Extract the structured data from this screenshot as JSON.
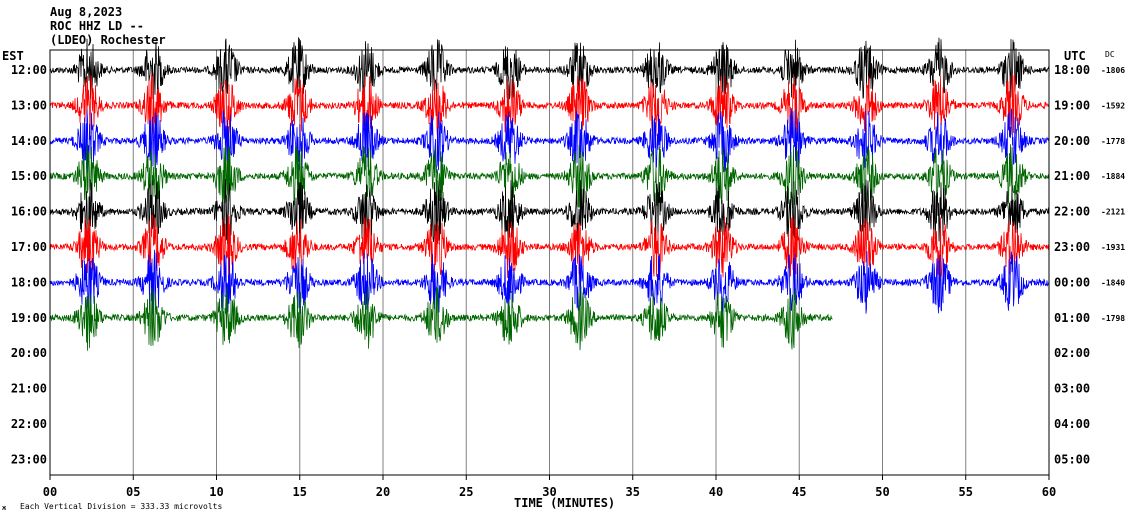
{
  "header": {
    "date": "Aug 8,2023",
    "station": "ROC HHZ LD --",
    "network": "(LDEO) Rochester",
    "left_tz": "EST",
    "right_tz": "UTC",
    "dc_label": "DC"
  },
  "footer": {
    "x_axis_title": "TIME (MINUTES)",
    "scale_note": "Each Vertical Division =  333.33 microvolts"
  },
  "chart_data": {
    "type": "line",
    "title": "",
    "xlabel": "TIME (MINUTES)",
    "ylabel": "",
    "xlim": [
      0,
      60
    ],
    "x_ticks": [
      "00",
      "05",
      "10",
      "15",
      "20",
      "25",
      "30",
      "35",
      "40",
      "45",
      "50",
      "55",
      "60"
    ],
    "grid": "vertical lines every 5 minutes",
    "rows_est": [
      "12:00",
      "13:00",
      "14:00",
      "15:00",
      "16:00",
      "17:00",
      "18:00",
      "19:00",
      "20:00",
      "21:00",
      "22:00",
      "23:00"
    ],
    "rows_utc": [
      "18:00",
      "19:00",
      "20:00",
      "21:00",
      "22:00",
      "23:00",
      "00:00",
      "01:00",
      "02:00",
      "03:00",
      "04:00",
      "05:00"
    ],
    "dc_offsets": [
      "-1806",
      "-1592",
      "-1778",
      "-1884",
      "-2121",
      "-1931",
      "-1840",
      "-1798"
    ],
    "trace_colors": [
      "#000000",
      "#ff0000",
      "#0000ff",
      "#006600"
    ],
    "trace_end_minute": 47,
    "burst_minutes": [
      2.3,
      6.2,
      10.6,
      14.9,
      19.0,
      23.2,
      27.6,
      31.8,
      36.4,
      40.4,
      44.6,
      49.0,
      53.4,
      57.8
    ]
  }
}
